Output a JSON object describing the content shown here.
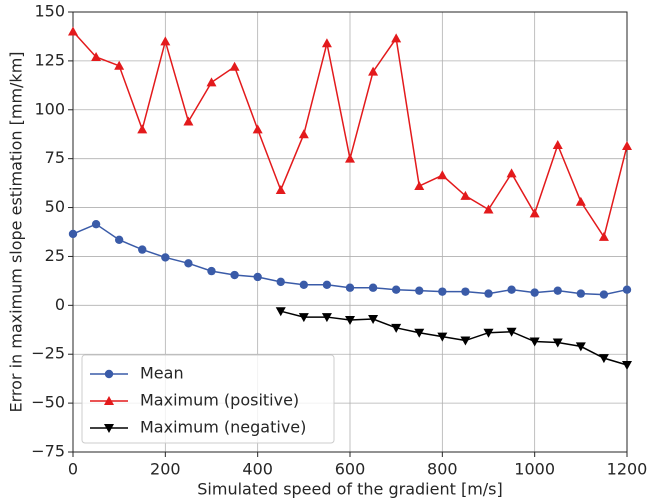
{
  "chart_data": {
    "type": "line",
    "xlabel": "Simulated speed of the gradient [m/s]",
    "ylabel": "Error in maximum slope estimation [mm/km]",
    "x": [
      0,
      50,
      100,
      150,
      200,
      250,
      300,
      350,
      400,
      450,
      500,
      550,
      600,
      650,
      700,
      750,
      800,
      850,
      900,
      950,
      1000,
      1050,
      1100,
      1150,
      1200
    ],
    "series": [
      {
        "name": "Mean",
        "color": "#3a5ba8",
        "marker": "circle",
        "values": [
          36.5,
          41.5,
          33.5,
          28.5,
          24.5,
          21.5,
          17.5,
          15.5,
          14.5,
          12,
          10.5,
          10.5,
          9,
          9,
          8,
          7.5,
          7,
          7,
          6,
          8,
          6.5,
          7.5,
          6,
          5.5,
          8
        ]
      },
      {
        "name": "Maximum (positive)",
        "color": "#e31a1c",
        "marker": "triangle-up",
        "values": [
          140,
          127,
          122.5,
          90,
          135,
          94,
          114,
          122,
          90,
          59,
          87.5,
          134,
          75,
          119.5,
          136.5,
          61,
          66.5,
          56,
          49,
          67.5,
          47,
          82,
          53,
          35,
          81.5
        ]
      },
      {
        "name": "Maximum (negative)",
        "color": "#000000",
        "marker": "triangle-down",
        "values": [
          null,
          null,
          null,
          null,
          null,
          null,
          null,
          null,
          null,
          -3,
          -6,
          -6,
          -7.5,
          -7,
          -11.5,
          -14,
          -16,
          -18,
          -14,
          -13.5,
          -18.5,
          -19,
          -21,
          -27,
          -30.5
        ]
      }
    ],
    "xlim": [
      0,
      1200
    ],
    "xticks": [
      0,
      200,
      400,
      600,
      800,
      1000,
      1200
    ],
    "ylim": [
      -75,
      150
    ],
    "yticks": [
      {
        "value": -75,
        "label": "−75"
      },
      {
        "value": -50,
        "label": "−50"
      },
      {
        "value": -25,
        "label": "−25"
      },
      0,
      25,
      50,
      75,
      100,
      125,
      150
    ],
    "grid": true,
    "legend": "lower left"
  }
}
